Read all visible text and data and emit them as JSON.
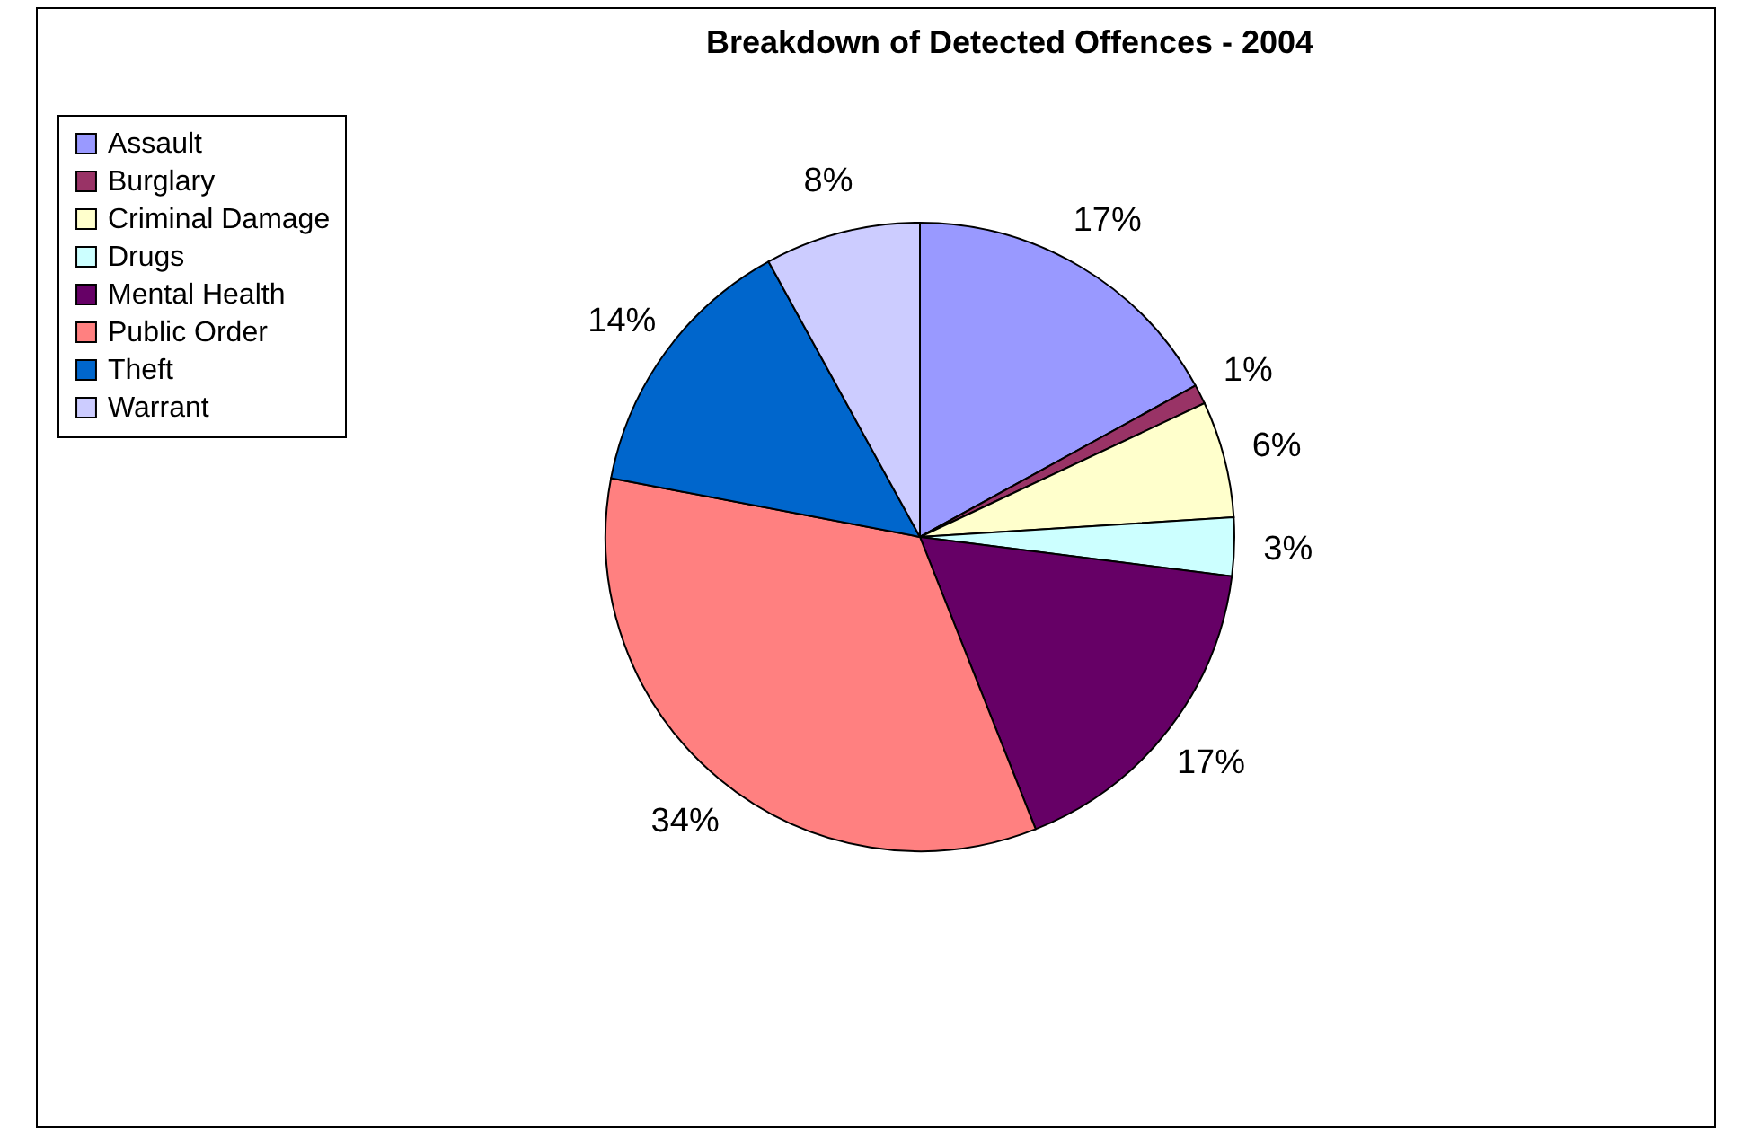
{
  "chart_data": {
    "type": "pie",
    "title": "Breakdown of Detected Offences - 2004",
    "categories": [
      "Assault",
      "Burglary",
      "Criminal Damage",
      "Drugs",
      "Mental Health",
      "Public Order",
      "Theft",
      "Warrant"
    ],
    "values": [
      17,
      1,
      6,
      3,
      17,
      34,
      14,
      8
    ],
    "colors": [
      "#9999ff",
      "#993366",
      "#ffffcc",
      "#ccffff",
      "#660066",
      "#ff8080",
      "#0066cc",
      "#ccccff"
    ],
    "value_labels": [
      "17%",
      "1%",
      "6%",
      "3%",
      "17%",
      "34%",
      "14%",
      "8%"
    ],
    "legend": "left"
  }
}
